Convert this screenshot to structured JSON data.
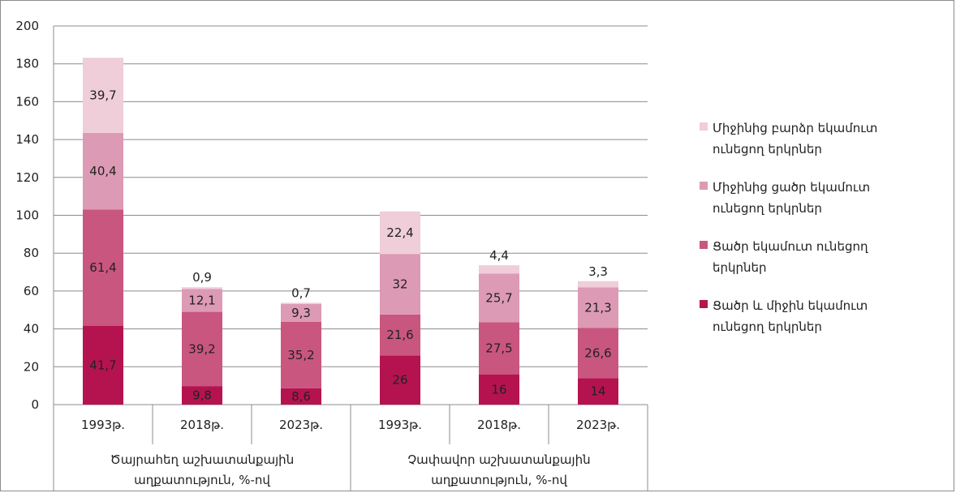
{
  "chart_data": {
    "type": "bar",
    "stacked": true,
    "ylim": [
      0,
      200
    ],
    "y_ticks": [
      0,
      20,
      40,
      60,
      80,
      100,
      120,
      140,
      160,
      180,
      200
    ],
    "grid": true,
    "legend_position": "right",
    "categories": [
      "1993թ.",
      "2018թ.",
      "2023թ.",
      "1993թ.",
      "2018թ.",
      "2023թ."
    ],
    "groups": [
      {
        "label": "Ծայրահեղ աշխատանքային աղքատություն, %-ով",
        "span": [
          0,
          2
        ]
      },
      {
        "label": "Չափավոր աշխատանքային աղքատություն, %-ով",
        "span": [
          3,
          5
        ]
      }
    ],
    "series": [
      {
        "name": "Ցածր և միջին եկամուտ ունեցող երկրներ",
        "color": "#b5134f",
        "values": [
          41.7,
          9.8,
          8.6,
          26,
          16,
          14
        ],
        "labels": [
          "41,7",
          "9,8",
          "8,6",
          "26",
          "16",
          "14"
        ]
      },
      {
        "name": "Ցածր եկամուտ ունեցող երկրներ",
        "color": "#c9567f",
        "values": [
          61.4,
          39.2,
          35.2,
          21.6,
          27.5,
          26.6
        ],
        "labels": [
          "61,4",
          "39,2",
          "35,2",
          "21,6",
          "27,5",
          "26,6"
        ]
      },
      {
        "name": "Միջինից ցածր եկամուտ ունեցող երկրներ",
        "color": "#dd9ab4",
        "values": [
          40.4,
          12.1,
          9.3,
          32,
          25.7,
          21.3
        ],
        "labels": [
          "40,4",
          "12,1",
          "9,3",
          "32",
          "25,7",
          "21,3"
        ]
      },
      {
        "name": "Միջինից բարձր եկամուտ ունեցող երկրներ",
        "color": "#efcdd9",
        "values": [
          39.7,
          0.9,
          0.7,
          22.4,
          4.4,
          3.3
        ],
        "labels": [
          "39,7",
          "0,9",
          "0,7",
          "22,4",
          "4,4",
          "3,3"
        ]
      }
    ],
    "legend_order": [
      3,
      2,
      1,
      0
    ],
    "legend_labels": [
      "Միջինից բարձր եկամուտ ունեցող երկրներ",
      "Միջինից ցածր եկամուտ ունեցող երկրներ",
      "Ցածր եկամուտ ունեցող երկրներ",
      "Ցածր և միջին եկամուտ ունեցող երկրներ"
    ]
  }
}
